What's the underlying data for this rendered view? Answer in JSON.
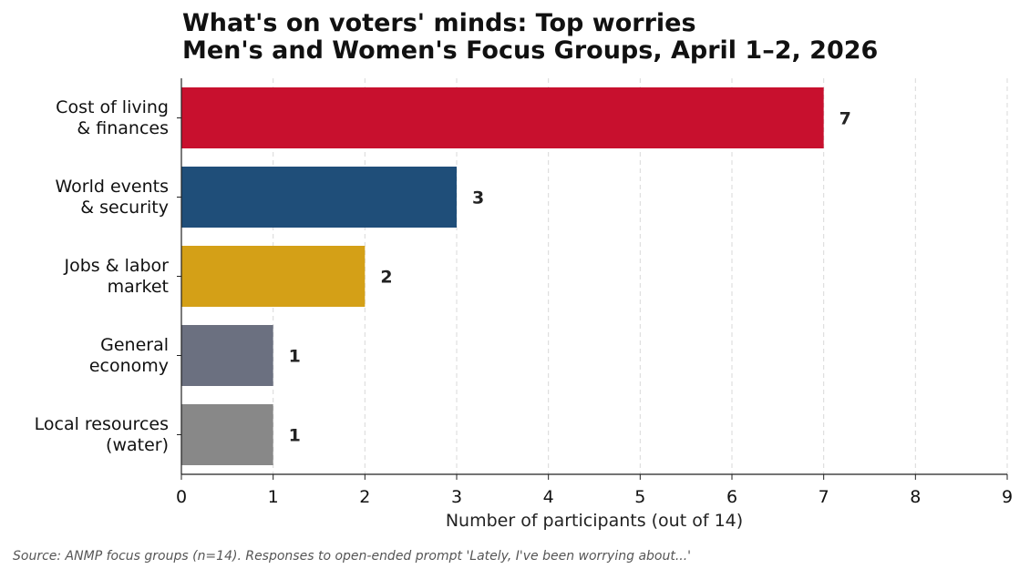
{
  "chart_data": {
    "type": "bar",
    "orientation": "horizontal",
    "title": [
      "What's on voters' minds: Top worries",
      "Men's and Women's Focus Groups, April 1–2, 2026"
    ],
    "categories": [
      [
        "Cost of living",
        "& finances"
      ],
      [
        "World events",
        "& security"
      ],
      [
        "Jobs & labor",
        "market"
      ],
      [
        "General",
        "economy"
      ],
      [
        "Local resources",
        "(water)"
      ]
    ],
    "values": [
      7,
      3,
      2,
      1,
      1
    ],
    "colors": [
      "#c8102e",
      "#1f4e79",
      "#d4a017",
      "#6b7080",
      "#888888"
    ],
    "xlabel": "Number of participants (out of 14)",
    "ylabel": "",
    "xlim": [
      0,
      9
    ],
    "xticks": [
      0,
      1,
      2,
      3,
      4,
      5,
      6,
      7,
      8,
      9
    ],
    "grid": "x-dashed",
    "data_labels": true
  },
  "source_note": "Source: ANMP focus groups (n=14). Responses to open-ended prompt 'Lately, I've been worrying about...'"
}
